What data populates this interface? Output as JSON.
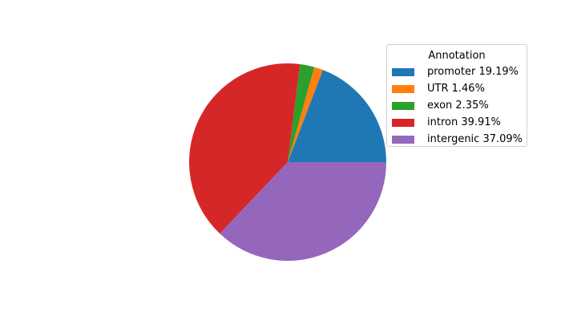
{
  "chart_data": {
    "type": "pie",
    "legend_title": "Annotation",
    "legend_placement": "upper-right",
    "start_angle_deg": 0,
    "direction": "counterclockwise",
    "slices": [
      {
        "label": "promoter 19.19%",
        "category": "promoter",
        "value": 19.19,
        "color": "#1f77b4"
      },
      {
        "label": "UTR 1.46%",
        "category": "UTR",
        "value": 1.46,
        "color": "#ff7f0e"
      },
      {
        "label": "exon 2.35%",
        "category": "exon",
        "value": 2.35,
        "color": "#2ca02c"
      },
      {
        "label": "intron 39.91%",
        "category": "intron",
        "value": 39.91,
        "color": "#d62728"
      },
      {
        "label": "intergenic 37.09%",
        "category": "intergenic",
        "value": 37.09,
        "color": "#9467bd"
      }
    ]
  }
}
